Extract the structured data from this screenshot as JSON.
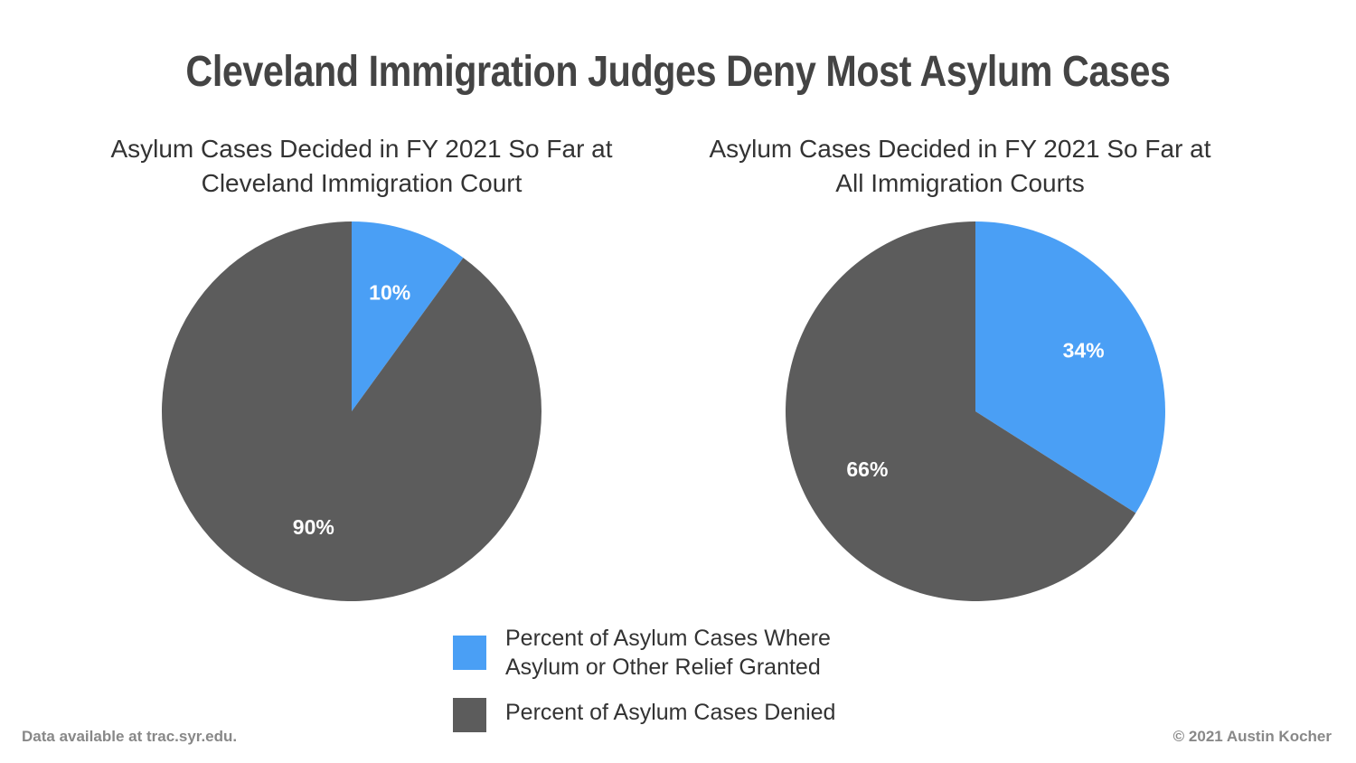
{
  "title": "Cleveland Immigration Judges Deny Most Asylum Cases",
  "chart_data": [
    {
      "type": "pie",
      "title": "Asylum Cases Decided in FY 2021 So Far at Cleveland Immigration Court",
      "categories": [
        "Percent of Asylum Cases Where Asylum or Other Relief Granted",
        "Percent of Asylum Cases Denied"
      ],
      "values": [
        10,
        90
      ],
      "value_labels": [
        "10%",
        "90%"
      ],
      "colors": [
        "#4a9ff5",
        "#5c5c5c"
      ]
    },
    {
      "type": "pie",
      "title": "Asylum Cases Decided in FY 2021 So Far at All Immigration Courts",
      "categories": [
        "Percent of Asylum Cases Where Asylum or Other Relief Granted",
        "Percent of Asylum Cases Denied"
      ],
      "values": [
        34,
        66
      ],
      "value_labels": [
        "34%",
        "66%"
      ],
      "colors": [
        "#4a9ff5",
        "#5c5c5c"
      ]
    }
  ],
  "source": "Data available at trac.syr.edu.",
  "credit": "© 2021 Austin Kocher"
}
